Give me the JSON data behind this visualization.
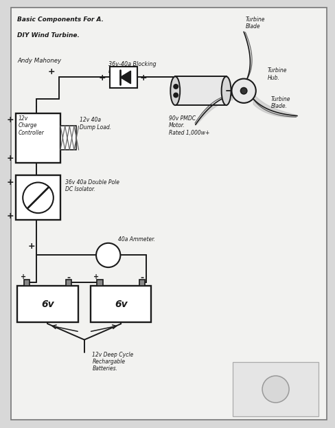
{
  "bg_color": "#d8d8d8",
  "paper_color": "#f2f2f0",
  "line_color": "#1a1a1a",
  "border_color": "#888888",
  "title1": "Basic Components For A.",
  "title2": "DIY Wind Turbine.",
  "title3": "Andy Mahoney",
  "label_diode": "36v-40a Blocking\nDiode",
  "label_motor": "90v PMDC\nMotor.\nRated 1,000w+",
  "label_turbine_blade_top": "Turbine\nBlade",
  "label_turbine_hub": "Turbine\nHub.",
  "label_turbine_blade_bot": "Turbine\nBlade.",
  "label_cc": "12v\nCharge\nController",
  "label_dump": "12v 40a\nDump Load.",
  "label_iso": "36v 40a Double Pole\nDC Isolator.",
  "label_ammeter": "40a Ammeter.",
  "label_bat": "12v Deep Cycle\nRechargable\nBatteries.",
  "label_bat1": "6v",
  "label_bat2": "6v"
}
